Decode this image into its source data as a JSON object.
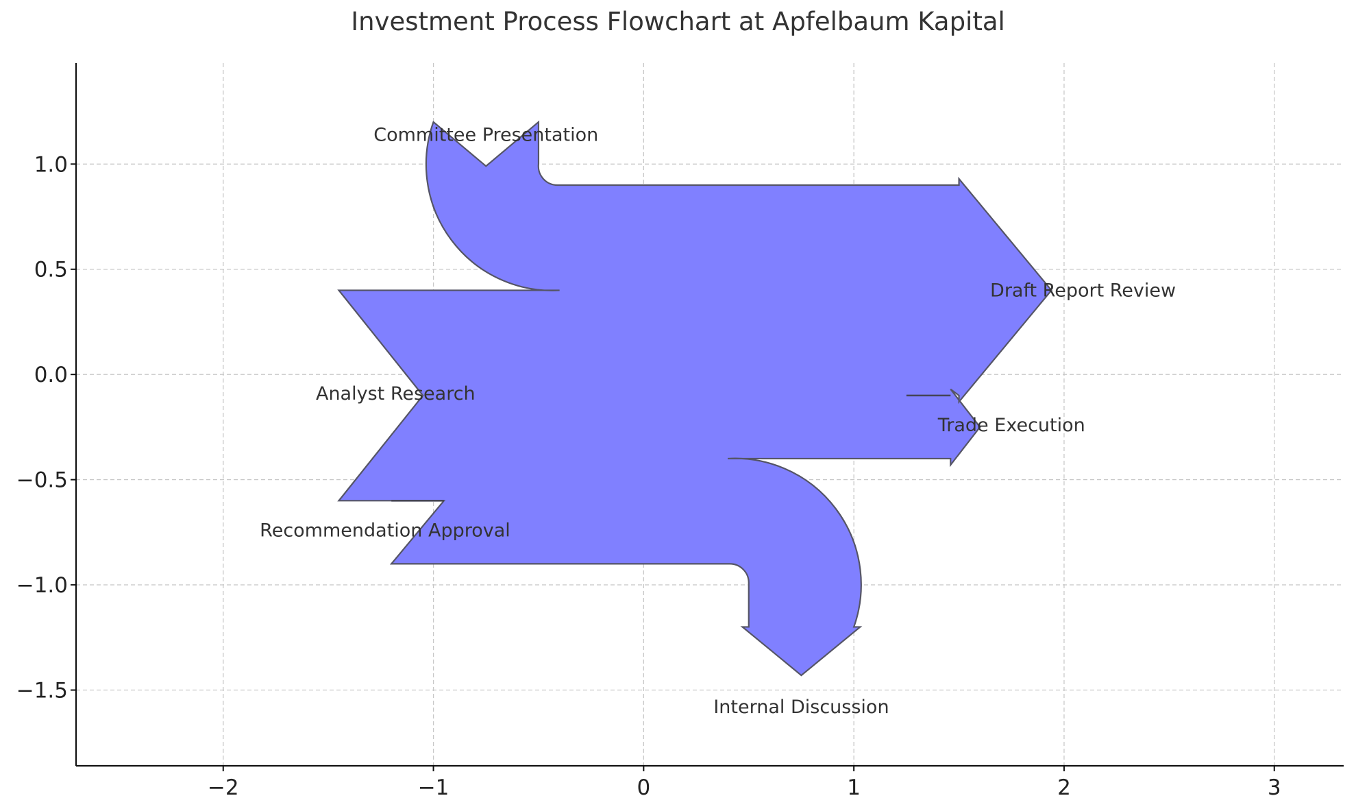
{
  "chart_data": {
    "type": "sankey",
    "title": "Investment Process Flowchart at Apfelbaum Kapital",
    "xlabel": "",
    "ylabel": "",
    "xlim": [
      -2.7,
      3.33
    ],
    "ylim": [
      -1.86,
      1.48
    ],
    "xticks": [
      -2,
      -1,
      0,
      1,
      2,
      3
    ],
    "yticks": [
      -1.5,
      -1.0,
      -0.5,
      0.0,
      0.5,
      1.0
    ],
    "xtick_labels": [
      "−2",
      "−1",
      "0",
      "1",
      "2",
      "3"
    ],
    "ytick_labels": [
      "−1.5",
      "−1.0",
      "−0.5",
      "0.0",
      "0.5",
      "1.0"
    ],
    "grid": true,
    "fill_color": "#8080ff",
    "edge_color": "#555566",
    "flows": [
      {
        "label": "Analyst Research",
        "value": 1.0,
        "direction": "in",
        "orientation": "left"
      },
      {
        "label": "Committee Presentation",
        "value": -0.5,
        "direction": "out",
        "orientation": "up"
      },
      {
        "label": "Draft Report Review",
        "value": 0.3,
        "direction": "out",
        "orientation": "right"
      },
      {
        "label": "Trade Execution",
        "value": 0.2,
        "direction": "out",
        "orientation": "right"
      },
      {
        "label": "Internal Discussion",
        "value": -0.5,
        "direction": "out",
        "orientation": "down"
      },
      {
        "label": "Recommendation Approval",
        "value": 0.3,
        "direction": "in",
        "orientation": "left"
      }
    ],
    "labels": [
      {
        "text": "Committee Presentation",
        "x": -0.75,
        "y": 1.14
      },
      {
        "text": "Draft Report Review",
        "x": 2.09,
        "y": 0.4
      },
      {
        "text": "Analyst Research",
        "x": -1.18,
        "y": -0.09
      },
      {
        "text": "Trade Execution",
        "x": 1.75,
        "y": -0.24
      },
      {
        "text": "Recommendation Approval",
        "x": -1.23,
        "y": -0.74
      },
      {
        "text": "Internal Discussion",
        "x": 0.75,
        "y": -1.58
      }
    ],
    "outline": [
      [
        -1.45,
        0.4
      ],
      [
        -0.4,
        0.4
      ],
      [
        "arc",
        0.6,
        1
      ],
      [
        -1.0,
        1.2
      ],
      [
        -0.75,
        0.99
      ],
      [
        -0.5,
        1.2
      ],
      [
        -0.5,
        1.0
      ],
      [
        "arc",
        0.09,
        0
      ],
      [
        -0.41,
        0.9
      ],
      [
        1.5,
        0.9
      ],
      [
        1.5,
        0.93
      ],
      [
        1.94,
        0.4
      ],
      [
        1.5,
        -0.13
      ],
      [
        1.5,
        -0.1
      ],
      [
        1.46,
        -0.07
      ],
      [
        1.6,
        -0.25
      ],
      [
        1.46,
        -0.43
      ],
      [
        1.46,
        -0.4
      ],
      [
        0.4,
        -0.4
      ],
      [
        "arc",
        0.6,
        1
      ],
      [
        1.0,
        -1.2
      ],
      [
        1.03,
        -1.2
      ],
      [
        0.75,
        -1.43
      ],
      [
        0.47,
        -1.2
      ],
      [
        0.5,
        -1.2
      ],
      [
        0.5,
        -0.99
      ],
      [
        "arc",
        0.09,
        0
      ],
      [
        0.41,
        -0.9
      ],
      [
        -1.2,
        -0.9
      ],
      [
        -0.95,
        -0.6
      ],
      [
        -1.45,
        -0.6
      ],
      [
        -1.05,
        -0.1
      ],
      [
        -1.45,
        0.4
      ]
    ],
    "side_strokes": [
      [
        [
          -1.2,
          -0.6
        ],
        [
          -0.95,
          -0.6
        ]
      ],
      [
        [
          1.25,
          -0.1
        ],
        [
          1.46,
          -0.1
        ]
      ]
    ]
  }
}
